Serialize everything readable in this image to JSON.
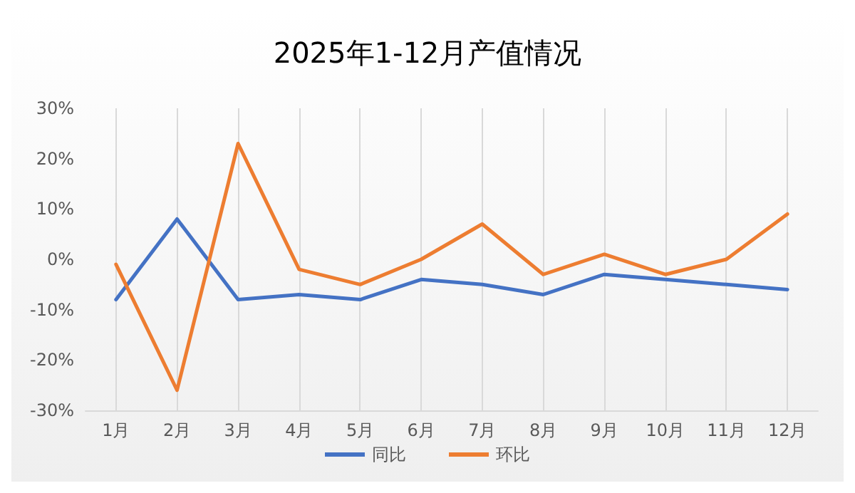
{
  "chart_data": {
    "type": "line",
    "title": "2025年1-12月产值情况",
    "categories": [
      "1月",
      "2月",
      "3月",
      "4月",
      "5月",
      "6月",
      "7月",
      "8月",
      "9月",
      "10月",
      "11月",
      "12月"
    ],
    "series": [
      {
        "name": "同比",
        "color": "#4472c4",
        "values": [
          -8,
          8,
          -8,
          -7,
          -8,
          -4,
          -5,
          -7,
          -3,
          -4,
          -5,
          -6
        ]
      },
      {
        "name": "环比",
        "color": "#ed7d31",
        "values": [
          -1,
          -26,
          23,
          -2,
          -5,
          0,
          7,
          -3,
          1,
          -3,
          0,
          9
        ]
      }
    ],
    "ylim": [
      -30,
      30
    ],
    "yticks": [
      {
        "value": -30,
        "label": "-30%"
      },
      {
        "value": -20,
        "label": "-20%"
      },
      {
        "value": -10,
        "label": "-10%"
      },
      {
        "value": 0,
        "label": "0%"
      },
      {
        "value": 10,
        "label": "10%"
      },
      {
        "value": 20,
        "label": "20%"
      },
      {
        "value": 30,
        "label": "30%"
      }
    ],
    "grid": "x",
    "legend": "bottom",
    "marker": "none",
    "line_style": "solid"
  }
}
